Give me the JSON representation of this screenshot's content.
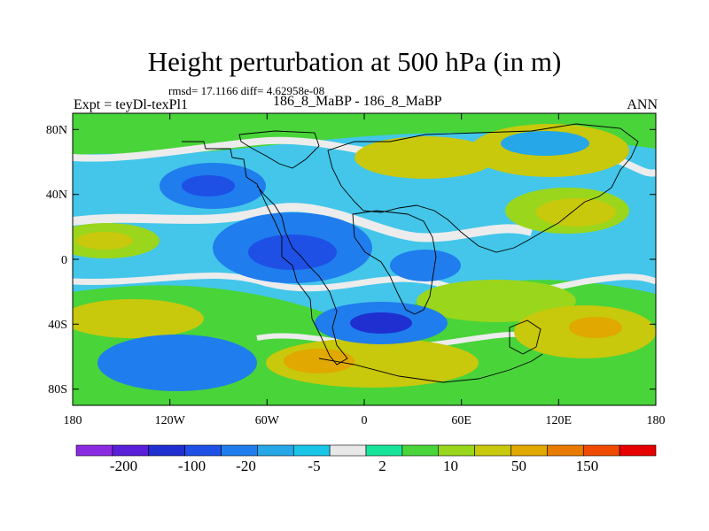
{
  "chart_data": {
    "type": "heatmap",
    "title": "Height perturbation at 500 hPa (in m)",
    "stats_text": "rmsd= 17.1166 diff= 4.62958e-08",
    "left_label": "Expt = teyDl-texPl1",
    "center_label": "186_8_MaBP - 186_8_MaBP",
    "right_label": "ANN",
    "x_ticks": [
      "180",
      "120W",
      "60W",
      "0",
      "60E",
      "120E",
      "180"
    ],
    "y_ticks": [
      "80N",
      "40N",
      "0",
      "40S",
      "80S"
    ],
    "xlim": [
      -180,
      180
    ],
    "ylim": [
      -90,
      90
    ],
    "colorbar_labels": [
      "-200",
      "-100",
      "-20",
      "-5",
      "2",
      "10",
      "50",
      "150"
    ],
    "colorbar_colors": [
      "#8a2be2",
      "#5a1fd8",
      "#1f2fd0",
      "#1e50e6",
      "#1f7ded",
      "#25a7e8",
      "#19c6e8",
      "#e8e8e8",
      "#18e39a",
      "#49d43a",
      "#9ad61c",
      "#c8c80c",
      "#e0a800",
      "#e87a00",
      "#ef4a00",
      "#e60000"
    ]
  }
}
